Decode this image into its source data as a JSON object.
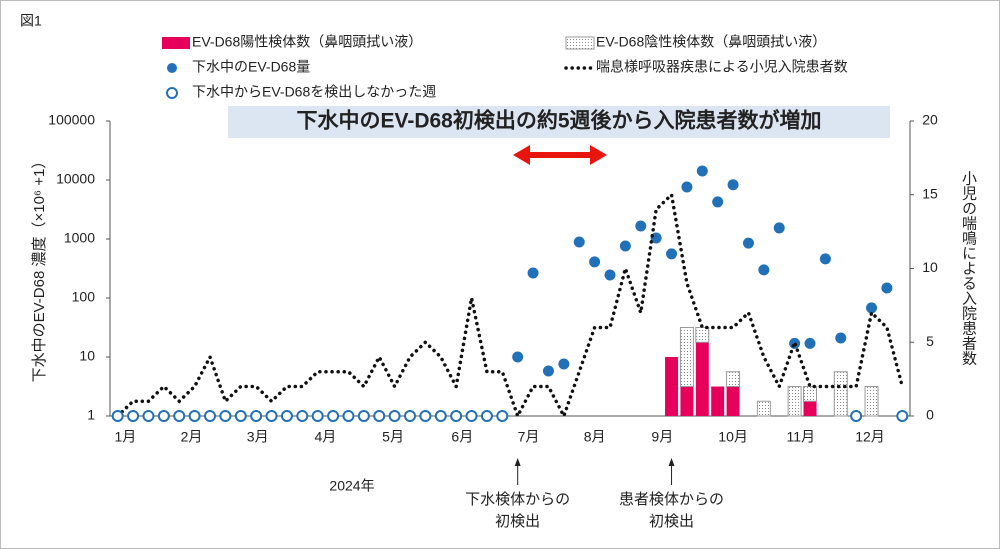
{
  "chart_data": {
    "type": "combo",
    "figure_label": "図1",
    "title": "下水中のEV-D68初検出の約5週後から入院患者数が増加",
    "y_label": "下水中のEV-D68 濃度（×10⁶ +1）",
    "y2_label": "小児の喘鳴による入院患者数",
    "x_year_label": "2024年",
    "annotations": [
      {
        "x": 27,
        "text": [
          "下水検体からの",
          "初検出"
        ]
      },
      {
        "x": 37,
        "text": [
          "患者検体からの",
          "初検出"
        ]
      }
    ],
    "xlim": [
      0.5,
      52.5
    ],
    "xticks": [
      {
        "value": 1.5,
        "label": "1月"
      },
      {
        "value": 5.8,
        "label": "2月"
      },
      {
        "value": 10.1,
        "label": "3月"
      },
      {
        "value": 14.5,
        "label": "4月"
      },
      {
        "value": 18.9,
        "label": "5月"
      },
      {
        "value": 23.4,
        "label": "6月"
      },
      {
        "value": 27.7,
        "label": "7月"
      },
      {
        "value": 32.0,
        "label": "8月"
      },
      {
        "value": 36.4,
        "label": "9月"
      },
      {
        "value": 41.0,
        "label": "10月"
      },
      {
        "value": 45.4,
        "label": "11月"
      },
      {
        "value": 49.9,
        "label": "12月"
      }
    ],
    "ylim": [
      1,
      100000
    ],
    "log_y": true,
    "yticks": [
      1,
      10,
      100,
      1000,
      10000,
      100000
    ],
    "y2lim": [
      0,
      20
    ],
    "y2ticks": [
      0,
      5,
      10,
      15,
      20
    ],
    "series": [
      {
        "name": "EV-D68陽性検体数（鼻咽頭拭い液）",
        "type": "bar",
        "axis": "y2",
        "color": "#e6005c",
        "x": [
          37,
          38,
          39,
          40,
          41,
          42,
          43,
          44,
          45,
          46,
          47,
          48,
          49,
          50
        ],
        "values": [
          4,
          2,
          5,
          2,
          2,
          0,
          0,
          0,
          0,
          1,
          0,
          0,
          0,
          0
        ]
      },
      {
        "name": "EV-D68陰性検体数（鼻咽頭拭い液）",
        "type": "bar",
        "axis": "y2",
        "color": "#9a9a9a",
        "x": [
          37,
          38,
          39,
          40,
          41,
          42,
          43,
          44,
          45,
          46,
          47,
          48,
          49,
          50
        ],
        "values": [
          0,
          4,
          1,
          0,
          1,
          0,
          1,
          0,
          2,
          1,
          0,
          3,
          0,
          2
        ]
      },
      {
        "name": "下水中のEV-D68量",
        "type": "scatter",
        "color": "#2270b8",
        "x": [
          27,
          28,
          29,
          30,
          31,
          32,
          33,
          34,
          35,
          36,
          37,
          38,
          39,
          40,
          41,
          42,
          43,
          44,
          45,
          46,
          47,
          48,
          50,
          51
        ],
        "values": [
          10,
          265,
          5.8,
          7.6,
          890,
          410,
          245,
          760,
          1660,
          1040,
          560,
          7600,
          14200,
          4250,
          8300,
          850,
          300,
          1540,
          17,
          17,
          460,
          21,
          68,
          148
        ]
      },
      {
        "name": "喘息様呼吸器疾患による小児入院患者数",
        "type": "line",
        "axis": "y2",
        "color": "#111111",
        "x": [
          1,
          2,
          3,
          4,
          5,
          6,
          7,
          8,
          9,
          10,
          11,
          12,
          13,
          14,
          15,
          16,
          17,
          18,
          19,
          20,
          21,
          22,
          23,
          24,
          25,
          26,
          27,
          28,
          29,
          30,
          31,
          32,
          33,
          34,
          35,
          36,
          37,
          38,
          39,
          40,
          41,
          42,
          43,
          44,
          45,
          46,
          47,
          48,
          49,
          50,
          51,
          52
        ],
        "values": [
          0,
          1,
          1,
          2,
          1,
          2,
          4,
          1,
          2,
          2,
          1,
          2,
          2,
          3,
          3,
          3,
          2,
          4,
          2,
          4,
          5,
          4,
          2,
          8,
          3,
          3,
          0,
          2,
          2,
          0,
          3,
          6,
          6,
          10,
          7,
          14,
          15,
          9,
          6,
          6,
          6,
          7,
          4,
          2,
          5,
          2,
          2,
          2,
          2,
          7,
          6,
          2
        ]
      },
      {
        "name": "下水中からEV-D68を検出しなかった週",
        "type": "open-scatter",
        "color": "#2270b8",
        "x": [
          1,
          2,
          3,
          4,
          5,
          6,
          7,
          8,
          9,
          10,
          11,
          12,
          13,
          14,
          15,
          16,
          17,
          18,
          19,
          20,
          21,
          22,
          23,
          24,
          25,
          26,
          49,
          52
        ],
        "values": [
          1,
          1,
          1,
          1,
          1,
          1,
          1,
          1,
          1,
          1,
          1,
          1,
          1,
          1,
          1,
          1,
          1,
          1,
          1,
          1,
          1,
          1,
          1,
          1,
          1,
          1,
          1,
          1
        ]
      }
    ]
  }
}
